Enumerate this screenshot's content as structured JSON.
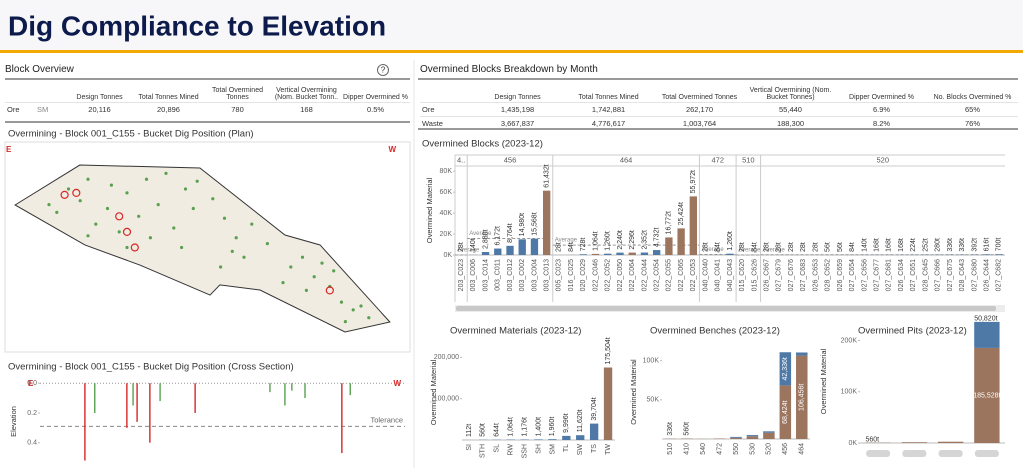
{
  "header": {
    "title": "Dig Compliance to Elevation"
  },
  "block_overview": {
    "title": "Block Overview",
    "help": "?",
    "columns": [
      "Design Tonnes",
      "Total Tonnes Mined",
      "Total Overmined Tonnes",
      "Vertical Overmining (Nom. Bucket Tonn..",
      "Dipper Overmined %"
    ],
    "rows": [
      [
        "Ore",
        "SM",
        "20,116",
        "20,896",
        "780",
        "168",
        "0.5%"
      ]
    ]
  },
  "breakdown": {
    "title": "Overmined Blocks Breakdown by Month",
    "columns": [
      "Design Tonnes",
      "Total Tonnes Mined",
      "Total Overmined Tonnes",
      "Vertical Overmining (Nom. Bucket Tonnes)",
      "Dipper Overmined %",
      "No. Blocks Overmined %"
    ],
    "rows": [
      [
        "Ore",
        "1,435,198",
        "1,742,881",
        "262,170",
        "55,440",
        "6.9%",
        "65%"
      ],
      [
        "Waste",
        "3,667,837",
        "4,776,617",
        "1,003,764",
        "188,300",
        "8.2%",
        "76%"
      ]
    ]
  },
  "chart_data": [
    {
      "type": "scatter",
      "title": "Overmining - Block 001_C155 - Bucket Dig Position (Plan)",
      "corner_labels": [
        "E",
        "W"
      ],
      "xlim": [
        0,
        100
      ],
      "ylim": [
        0,
        100
      ],
      "series": [
        {
          "color": "#59a14f",
          "marker": "dot",
          "x": [
            10,
            15,
            20,
            25,
            30,
            35,
            40,
            45,
            12,
            22,
            28,
            33,
            38,
            42,
            47,
            18,
            26,
            36,
            44,
            30,
            48,
            20,
            52,
            55,
            58,
            62,
            60,
            66,
            54,
            57,
            72,
            75,
            78,
            82,
            85,
            88,
            92,
            80,
            76,
            86,
            70,
            83,
            90
          ],
          "y": [
            72,
            80,
            85,
            70,
            78,
            85,
            88,
            80,
            68,
            62,
            58,
            66,
            72,
            60,
            70,
            74,
            82,
            55,
            50,
            50,
            84,
            56,
            75,
            65,
            55,
            62,
            45,
            52,
            40,
            48,
            40,
            45,
            35,
            30,
            22,
            18,
            14,
            42,
            28,
            12,
            32,
            38,
            20
          ]
        },
        {
          "color": "#d62728",
          "marker": "ring",
          "x": [
            14,
            17,
            28,
            30,
            32,
            82
          ],
          "y": [
            77,
            78,
            66,
            58,
            50,
            28
          ]
        }
      ]
    },
    {
      "type": "stem",
      "title": "Overmining - Block 001_C155 - Bucket Dig Position (Cross Section)",
      "corner_labels": [
        "E",
        "W"
      ],
      "ylabel": "Elevation",
      "y_inverted": true,
      "xlim": [
        0,
        100
      ],
      "ylim": [
        -0.035,
        0.55
      ],
      "yticks": [
        {
          "value": 0,
          "label": "0.0"
        },
        {
          "value": 0.2,
          "label": "0.2"
        },
        {
          "value": 0.4,
          "label": "0.4"
        }
      ],
      "tolerance": {
        "label": "Tolerance",
        "value": 0.29
      },
      "series": [
        {
          "color": "#59a14f",
          "x": [
            15,
            25.5,
            32.9,
            63,
            67.1,
            69,
            72.6,
            85
          ],
          "values": [
            0.2,
            0.15,
            0.12,
            0.06,
            0.15,
            0.05,
            0.1,
            0.08
          ]
        },
        {
          "color": "#d62728",
          "x": [
            12.3,
            23.8,
            26.6,
            30.1,
            42.5,
            82.7
          ],
          "values": [
            0.52,
            0.3,
            0.26,
            0.4,
            0.2,
            0.47
          ]
        }
      ]
    },
    {
      "type": "bar",
      "title": "Overmined Blocks  (2023-12)",
      "ylabel": "Overmined Material",
      "ylim": [
        0,
        85000
      ],
      "yticks": [
        {
          "value": 0,
          "label": "0K"
        },
        {
          "value": 20000,
          "label": "20K"
        },
        {
          "value": 40000,
          "label": "40K"
        },
        {
          "value": 60000,
          "label": "60K"
        },
        {
          "value": 80000,
          "label": "80K"
        }
      ],
      "categories": [
        "203_C023",
        "003_C006",
        "003_C014",
        "003_C011",
        "003_C012",
        "003_C002",
        "003_C004",
        "003_C013",
        "005_C023",
        "016_C025",
        "020_C029",
        "022_C046",
        "022_C052",
        "022_C050",
        "022_C064",
        "022_C044",
        "022_C054",
        "022_C055",
        "022_C065",
        "022_C053",
        "040_C040",
        "040_C041",
        "040_C043",
        "015_C620",
        "015_C626",
        "026_C667",
        "027_C679",
        "027_C676",
        "027_C683",
        "026_C653",
        "028_C652",
        "026_C659",
        "027_C654",
        "027_C656",
        "027_C677",
        "027_C681",
        "026_C634",
        "027_C651",
        "028_C645",
        "027_C666",
        "027_C675",
        "028_C643",
        "027_C680",
        "026_C644",
        "027_C682"
      ],
      "benches": [
        "4..",
        "456",
        "456",
        "456",
        "456",
        "456",
        "456",
        "456",
        "464",
        "464",
        "464",
        "464",
        "464",
        "464",
        "464",
        "464",
        "464",
        "464",
        "464",
        "464",
        "472",
        "472",
        "472",
        "510",
        "510",
        "520",
        "520",
        "520",
        "520",
        "520",
        "520",
        "520",
        "520",
        "520",
        "520",
        "520",
        "520",
        "520",
        "520",
        "520",
        "520",
        "520",
        "520",
        "520",
        "520"
      ],
      "values": [
        28,
        140,
        2880,
        6172,
        8764,
        14980,
        15568,
        61432,
        28,
        84,
        728,
        1064,
        1260,
        2240,
        2296,
        2352,
        4732,
        16772,
        25424,
        55972,
        28,
        84,
        1260,
        28,
        84,
        28,
        28,
        28,
        28,
        28,
        56,
        56,
        84,
        140,
        168,
        168,
        168,
        224,
        252,
        280,
        336,
        336,
        392,
        616,
        700
      ],
      "value_labels": [
        "28t",
        "140t",
        "2,880t",
        "6,172t",
        "8,764t",
        "14,980t",
        "15,568t",
        "61,432t",
        "28t",
        "84t",
        "728t",
        "1,064t",
        "1,260t",
        "2,240t",
        "2,296t",
        "2,352t",
        "4,732t",
        "16,772t",
        "25,424t",
        "55,972t",
        "28t",
        "84t",
        "1,260t",
        "28t",
        "84t",
        "28t",
        "28t",
        "28t",
        "28t",
        "28t",
        "56t",
        "56t",
        "84t",
        "140t",
        "168t",
        "168t",
        "168t",
        "224t",
        "252t",
        "280t",
        "336t",
        "336t",
        "392t",
        "616t",
        "700t"
      ],
      "colors": [
        "#4e79a7",
        "#4e79a7",
        "#4e79a7",
        "#4e79a7",
        "#4e79a7",
        "#4e79a7",
        "#4e79a7",
        "#9c755f",
        "#4e79a7",
        "#4e79a7",
        "#4e79a7",
        "#9c755f",
        "#4e79a7",
        "#4e79a7",
        "#9c755f",
        "#4e79a7",
        "#4e79a7",
        "#9c755f",
        "#9c755f",
        "#9c755f",
        "#4e79a7",
        "#4e79a7",
        "#4e79a7",
        "#4e79a7",
        "#4e79a7",
        "#4e79a7",
        "#4e79a7",
        "#4e79a7",
        "#4e79a7",
        "#4e79a7",
        "#4e79a7",
        "#4e79a7",
        "#4e79a7",
        "#4e79a7",
        "#4e79a7",
        "#4e79a7",
        "#4e79a7",
        "#4e79a7",
        "#4e79a7",
        "#4e79a7",
        "#4e79a7",
        "#4e79a7",
        "#4e79a7",
        "#4e79a7",
        "#4e79a7"
      ],
      "average": {
        "label": "Average",
        "values": [
          28,
          15705,
          9414,
          457,
          56,
          208
        ]
      }
    },
    {
      "type": "bar",
      "title": "Overmined Materials (2023-12)",
      "ylabel": "Overmined Material",
      "ylim": [
        0,
        230000
      ],
      "yticks": [
        {
          "value": 100000,
          "label": "100,000"
        },
        {
          "value": 200000,
          "label": "200,000"
        }
      ],
      "categories": [
        "SI",
        "STH",
        "SL",
        "RW",
        "SSH",
        "SH",
        "SM",
        "TL",
        "SW",
        "TS",
        "TW"
      ],
      "values": [
        112,
        560,
        644,
        1064,
        1176,
        1400,
        1960,
        9996,
        11620,
        39704,
        175504
      ],
      "value_labels": [
        "112t",
        "560t",
        "644t",
        "1,064t",
        "1,176t",
        "1,400t",
        "1,960t",
        "9,996t",
        "11,620t",
        "39,704t",
        "175,504t"
      ],
      "colors": [
        "#4e79a7",
        "#4e79a7",
        "#4e79a7",
        "#4e79a7",
        "#4e79a7",
        "#4e79a7",
        "#4e79a7",
        "#4e79a7",
        "#4e79a7",
        "#4e79a7",
        "#9c755f"
      ]
    },
    {
      "type": "stacked_bar",
      "title": "Overmined Benches  (2023-12)",
      "ylabel": "Overmined Material",
      "ylim": [
        0,
        120000
      ],
      "yticks": [
        {
          "value": 50000,
          "label": "50K"
        },
        {
          "value": 100000,
          "label": "100K"
        }
      ],
      "categories": [
        "510",
        "410",
        "540",
        "472",
        "550",
        "530",
        "520",
        "456",
        "464"
      ],
      "series": [
        {
          "color": "#9c755f",
          "values": [
            336,
            560,
            150,
            600,
            1500,
            3500,
            8000,
            68424,
            106456
          ],
          "value_labels": [
            "336t",
            "560t",
            null,
            null,
            null,
            null,
            null,
            "68,424t",
            "106,456t"
          ]
        },
        {
          "color": "#4e79a7",
          "values": [
            0,
            0,
            0,
            0,
            1200,
            1500,
            1800,
            42336,
            4000
          ],
          "value_labels": [
            null,
            null,
            null,
            null,
            null,
            null,
            null,
            "42,336t",
            null
          ]
        }
      ]
    },
    {
      "type": "stacked_bar",
      "title": "Overmined Pits  (2023-12)",
      "ylabel": "Overmined Material",
      "ylim": [
        0,
        240000
      ],
      "yticks": [
        {
          "value": 0,
          "label": "0K"
        },
        {
          "value": 100000,
          "label": "100K"
        },
        {
          "value": 200000,
          "label": "200K"
        }
      ],
      "categories": [
        null,
        null,
        null,
        null
      ],
      "series": [
        {
          "color": "#9c755f",
          "values": [
            560,
            1500,
            2500,
            185528
          ],
          "value_labels": [
            "560t",
            null,
            null,
            "185,528t"
          ]
        },
        {
          "color": "#4e79a7",
          "values": [
            0,
            0,
            0,
            50820
          ],
          "value_labels": [
            null,
            null,
            null,
            "50,820t"
          ]
        }
      ]
    }
  ]
}
